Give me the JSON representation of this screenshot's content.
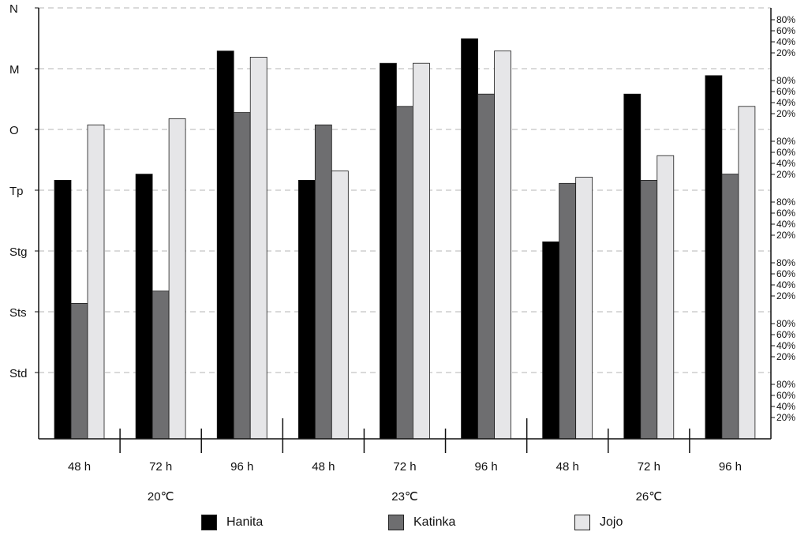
{
  "chart_data": {
    "type": "bar",
    "y_stage_labels": [
      "N",
      "M",
      "O",
      "Tp",
      "Stg",
      "Sts",
      "Std"
    ],
    "y_right_tick_labels": [
      "80%",
      "60%",
      "40%",
      "20%"
    ],
    "groups": [
      {
        "label": "20℃",
        "categories": [
          "48 h",
          "72 h",
          "96 h"
        ]
      },
      {
        "label": "23℃",
        "categories": [
          "48 h",
          "72 h",
          "96 h"
        ]
      },
      {
        "label": "26℃",
        "categories": [
          "48 h",
          "72 h",
          "96 h"
        ]
      }
    ],
    "ylim": [
      0,
      7
    ],
    "series": [
      {
        "name": "Hanita",
        "color": "#000000",
        "values": [
          4.2,
          4.3,
          6.3,
          4.2,
          6.1,
          6.5,
          3.2,
          5.6,
          5.9
        ]
      },
      {
        "name": "Katinka",
        "color": "#6e6e70",
        "values": [
          2.2,
          2.4,
          5.3,
          5.1,
          5.4,
          5.6,
          4.15,
          4.2,
          4.3
        ]
      },
      {
        "name": "Jojo",
        "color": "#e6e6e8",
        "values": [
          5.1,
          5.2,
          6.2,
          4.35,
          6.1,
          6.3,
          4.25,
          4.6,
          5.4
        ]
      }
    ],
    "legend_position": "bottom",
    "grid": true
  }
}
